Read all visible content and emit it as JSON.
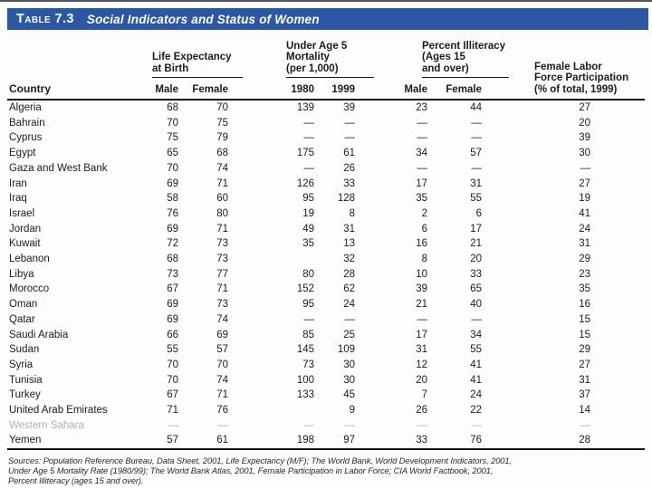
{
  "title_bar": {
    "label": "Table 7.3",
    "title": "Social Indicators and Status of Women",
    "bg_color": "#2b57a5"
  },
  "table": {
    "country_header": "Country",
    "groups": [
      {
        "lines": [
          "Life Expectancy",
          "at Birth"
        ],
        "subs": [
          "Male",
          "Female"
        ]
      },
      {
        "lines": [
          "Under Age 5",
          "Mortality",
          "(per 1,000)"
        ],
        "subs": [
          "1980",
          "1999"
        ]
      },
      {
        "lines": [
          "Percent Illiteracy",
          "(Ages 15",
          "and over)"
        ],
        "subs": [
          "Male",
          "Female"
        ]
      },
      {
        "lines": [
          "Female Labor",
          "Force Participation",
          "(% of total, 1999)"
        ],
        "subs": []
      }
    ],
    "rows": [
      {
        "country": "Algeria",
        "le_male": "68",
        "le_female": "70",
        "mort_1980": "139",
        "mort_1999": "39",
        "illit_male": "23",
        "illit_female": "44",
        "labor": "27"
      },
      {
        "country": "Bahrain",
        "le_male": "70",
        "le_female": "75",
        "mort_1980": "—",
        "mort_1999": "—",
        "illit_male": "—",
        "illit_female": "—",
        "labor": "20"
      },
      {
        "country": "Cyprus",
        "le_male": "75",
        "le_female": "79",
        "mort_1980": "—",
        "mort_1999": "—",
        "illit_male": "—",
        "illit_female": "—",
        "labor": "39"
      },
      {
        "country": "Egypt",
        "le_male": "65",
        "le_female": "68",
        "mort_1980": "175",
        "mort_1999": "61",
        "illit_male": "34",
        "illit_female": "57",
        "labor": "30"
      },
      {
        "country": "Gaza and West Bank",
        "le_male": "70",
        "le_female": "74",
        "mort_1980": "—",
        "mort_1999": "26",
        "illit_male": "—",
        "illit_female": "—",
        "labor": "—"
      },
      {
        "country": "Iran",
        "le_male": "69",
        "le_female": "71",
        "mort_1980": "126",
        "mort_1999": "33",
        "illit_male": "17",
        "illit_female": "31",
        "labor": "27"
      },
      {
        "country": "Iraq",
        "le_male": "58",
        "le_female": "60",
        "mort_1980": "95",
        "mort_1999": "128",
        "illit_male": "35",
        "illit_female": "55",
        "labor": "19"
      },
      {
        "country": "Israel",
        "le_male": "76",
        "le_female": "80",
        "mort_1980": "19",
        "mort_1999": "8",
        "illit_male": "2",
        "illit_female": "6",
        "labor": "41"
      },
      {
        "country": "Jordan",
        "le_male": "69",
        "le_female": "71",
        "mort_1980": "49",
        "mort_1999": "31",
        "illit_male": "6",
        "illit_female": "17",
        "labor": "24"
      },
      {
        "country": "Kuwait",
        "le_male": "72",
        "le_female": "73",
        "mort_1980": "35",
        "mort_1999": "13",
        "illit_male": "16",
        "illit_female": "21",
        "labor": "31"
      },
      {
        "country": "Lebanon",
        "le_male": "68",
        "le_female": "73",
        "mort_1980": "",
        "mort_1999": "32",
        "illit_male": "8",
        "illit_female": "20",
        "labor": "29"
      },
      {
        "country": "Libya",
        "le_male": "73",
        "le_female": "77",
        "mort_1980": "80",
        "mort_1999": "28",
        "illit_male": "10",
        "illit_female": "33",
        "labor": "23"
      },
      {
        "country": "Morocco",
        "le_male": "67",
        "le_female": "71",
        "mort_1980": "152",
        "mort_1999": "62",
        "illit_male": "39",
        "illit_female": "65",
        "labor": "35"
      },
      {
        "country": "Oman",
        "le_male": "69",
        "le_female": "73",
        "mort_1980": "95",
        "mort_1999": "24",
        "illit_male": "21",
        "illit_female": "40",
        "labor": "16"
      },
      {
        "country": "Qatar",
        "le_male": "69",
        "le_female": "74",
        "mort_1980": "—",
        "mort_1999": "—",
        "illit_male": "—",
        "illit_female": "—",
        "labor": "15"
      },
      {
        "country": "Saudi Arabia",
        "le_male": "66",
        "le_female": "69",
        "mort_1980": "85",
        "mort_1999": "25",
        "illit_male": "17",
        "illit_female": "34",
        "labor": "15"
      },
      {
        "country": "Sudan",
        "le_male": "55",
        "le_female": "57",
        "mort_1980": "145",
        "mort_1999": "109",
        "illit_male": "31",
        "illit_female": "55",
        "labor": "29"
      },
      {
        "country": "Syria",
        "le_male": "70",
        "le_female": "70",
        "mort_1980": "73",
        "mort_1999": "30",
        "illit_male": "12",
        "illit_female": "41",
        "labor": "27"
      },
      {
        "country": "Tunisia",
        "le_male": "70",
        "le_female": "74",
        "mort_1980": "100",
        "mort_1999": "30",
        "illit_male": "20",
        "illit_female": "41",
        "labor": "31"
      },
      {
        "country": "Turkey",
        "le_male": "67",
        "le_female": "71",
        "mort_1980": "133",
        "mort_1999": "45",
        "illit_male": "7",
        "illit_female": "24",
        "labor": "37"
      },
      {
        "country": "United Arab Emirates",
        "le_male": "71",
        "le_female": "76",
        "mort_1980": "",
        "mort_1999": "9",
        "illit_male": "26",
        "illit_female": "22",
        "labor": "14"
      },
      {
        "country": "Western Sahara",
        "le_male": "—",
        "le_female": "—",
        "mort_1980": "—",
        "mort_1999": "—",
        "illit_male": "—",
        "illit_female": "—",
        "labor": "—",
        "muted": true
      },
      {
        "country": "Yemen",
        "le_male": "57",
        "le_female": "61",
        "mort_1980": "198",
        "mort_1999": "97",
        "illit_male": "33",
        "illit_female": "76",
        "labor": "28"
      }
    ]
  },
  "sources": {
    "lines": [
      "Sources: Population Reference Bureau, Data Sheet, 2001, Life Expectancy (M/F); The World Bank, World Development Indicators, 2001,",
      "Under Age 5 Mortality Rate (1980/99); The World Bank Atlas, 2001, Female Participation in Labor Force; CIA World Factbook, 2001,",
      "Percent Illiteracy (ages 15 and over)."
    ]
  }
}
